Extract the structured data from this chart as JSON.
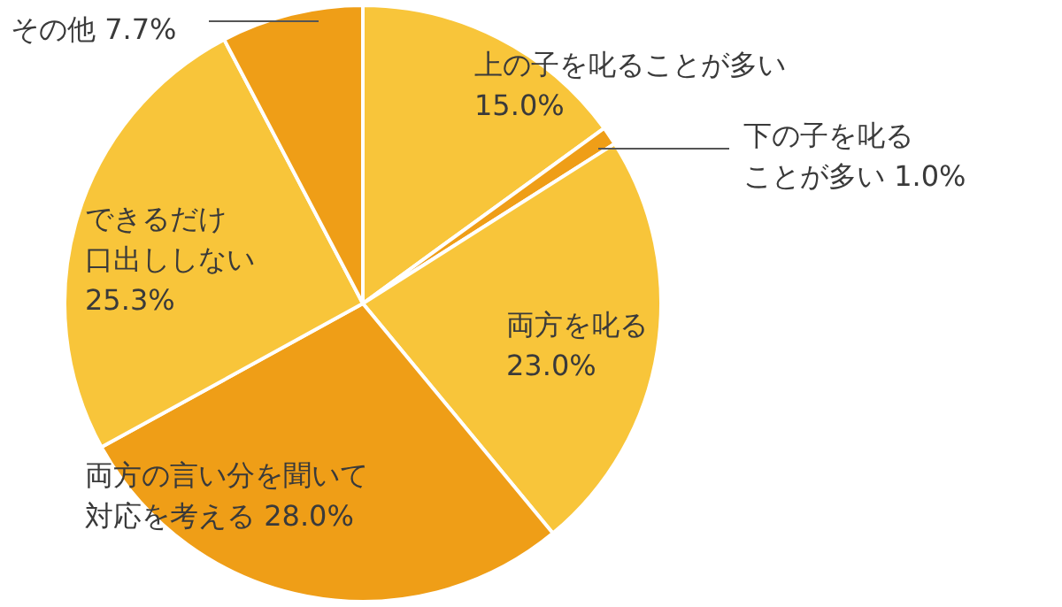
{
  "chart_data": {
    "type": "pie",
    "categories": [
      "上の子を叱ることが多い",
      "下の子を叱ることが多い",
      "両方を叱る",
      "両方の言い分を聞いて対応を考える",
      "できるだけ口出ししない",
      "その他"
    ],
    "values": [
      15.0,
      1.0,
      23.0,
      28.0,
      25.3,
      7.7
    ],
    "value_labels": [
      "15.0%",
      "1.0%",
      "23.0%",
      "28.0%",
      "25.3%",
      "7.7%"
    ],
    "colors": [
      "#f8c53a",
      "#ef9e17",
      "#f8c53a",
      "#ef9e17",
      "#f8c53a",
      "#ef9e17"
    ],
    "legend": false
  }
}
